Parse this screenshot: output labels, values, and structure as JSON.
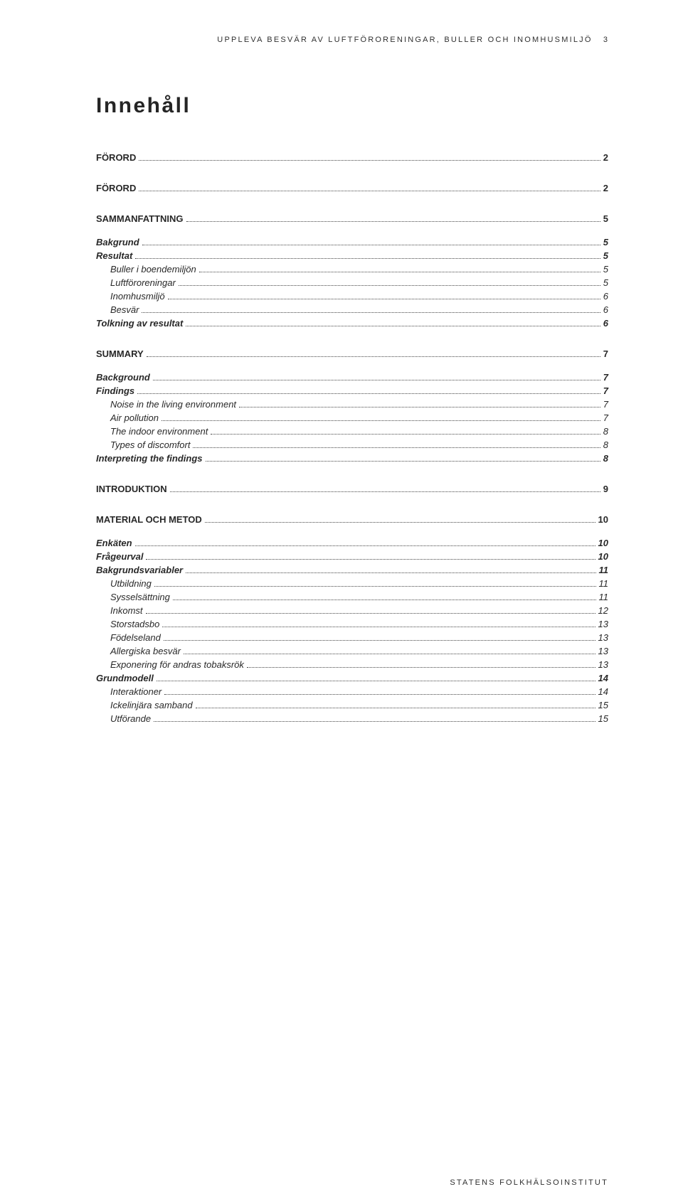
{
  "header": {
    "running_title": "UPPLEVA BESVÄR AV LUFTFÖRORENINGAR, BULLER OCH INOMHUSMILJÖ",
    "page_number": "3"
  },
  "toc_title": "Innehåll",
  "footer": "STATENS FOLKHÄLSOINSTITUT",
  "toc": [
    {
      "label": "FÖRORD",
      "page": "2",
      "level": 0
    },
    {
      "label": "FÖRORD",
      "page": "2",
      "level": 0
    },
    {
      "label": "SAMMANFATTNING",
      "page": "5",
      "level": 0
    },
    {
      "label": "Bakgrund",
      "page": "5",
      "level": 1
    },
    {
      "label": "Resultat",
      "page": "5",
      "level": 1
    },
    {
      "label": "Buller i boendemiljön",
      "page": "5",
      "level": 2
    },
    {
      "label": "Luftföroreningar",
      "page": "5",
      "level": 2
    },
    {
      "label": "Inomhusmiljö",
      "page": "6",
      "level": 2
    },
    {
      "label": "Besvär",
      "page": "6",
      "level": 2
    },
    {
      "label": "Tolkning av resultat",
      "page": "6",
      "level": 1
    },
    {
      "label": "SUMMARY",
      "page": "7",
      "level": 0
    },
    {
      "label": "Background",
      "page": "7",
      "level": 1
    },
    {
      "label": "Findings",
      "page": "7",
      "level": 1
    },
    {
      "label": "Noise in the living environment",
      "page": "7",
      "level": 2
    },
    {
      "label": "Air pollution",
      "page": "7",
      "level": 2
    },
    {
      "label": "The indoor environment",
      "page": "8",
      "level": 2
    },
    {
      "label": "Types of discomfort",
      "page": "8",
      "level": 2
    },
    {
      "label": "Interpreting the findings",
      "page": "8",
      "level": 1
    },
    {
      "label": "INTRODUKTION",
      "page": "9",
      "level": 0
    },
    {
      "label": "MATERIAL OCH METOD",
      "page": "10",
      "level": 0
    },
    {
      "label": "Enkäten",
      "page": "10",
      "level": 1
    },
    {
      "label": "Frågeurval",
      "page": "10",
      "level": 1
    },
    {
      "label": "Bakgrundsvariabler",
      "page": "11",
      "level": 1
    },
    {
      "label": "Utbildning",
      "page": "11",
      "level": 2
    },
    {
      "label": "Sysselsättning",
      "page": "11",
      "level": 2
    },
    {
      "label": "Inkomst",
      "page": "12",
      "level": 2
    },
    {
      "label": "Storstadsbo",
      "page": "13",
      "level": 2
    },
    {
      "label": "Födelseland",
      "page": "13",
      "level": 2
    },
    {
      "label": "Allergiska besvär",
      "page": "13",
      "level": 2
    },
    {
      "label": "Exponering för andras tobaksrök",
      "page": "13",
      "level": 2
    },
    {
      "label": "Grundmodell",
      "page": "14",
      "level": 1
    },
    {
      "label": "Interaktioner",
      "page": "14",
      "level": 2
    },
    {
      "label": "Ickelinjära samband",
      "page": "15",
      "level": 2
    },
    {
      "label": "Utförande",
      "page": "15",
      "level": 2
    }
  ]
}
